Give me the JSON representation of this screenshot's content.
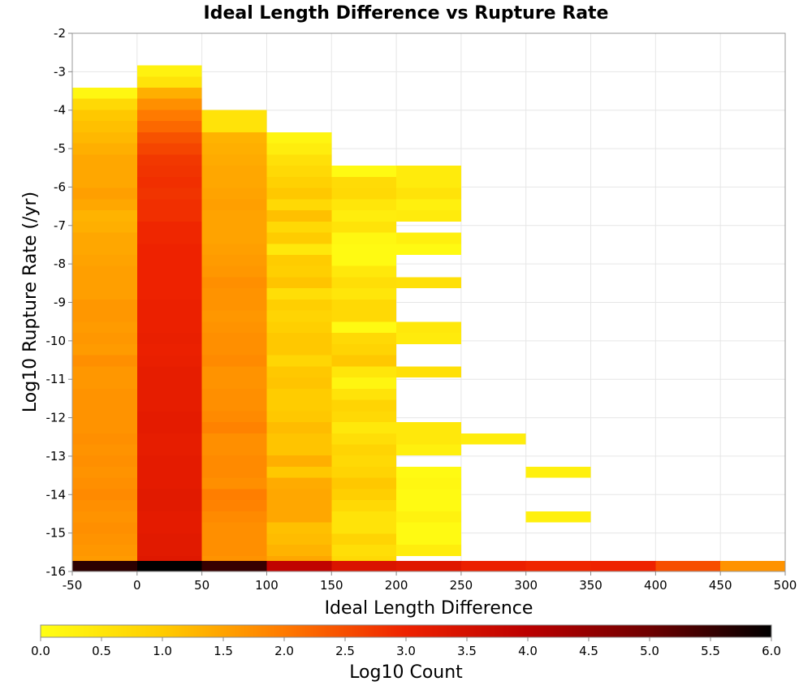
{
  "chart_data": {
    "type": "heatmap",
    "title": "Ideal Length Difference vs Rupture Rate",
    "xlabel": "Ideal Length Difference",
    "ylabel": "Log10 Rupture Rate (/yr)",
    "colorbar_label": "Log10 Count",
    "xlim": [
      -50,
      500
    ],
    "ylim": [
      -16,
      -2
    ],
    "x_ticks": [
      "-50",
      "0",
      "50",
      "100",
      "150",
      "200",
      "250",
      "300",
      "350",
      "400",
      "450",
      "500"
    ],
    "y_ticks": [
      "-2",
      "-3",
      "-4",
      "-5",
      "-6",
      "-7",
      "-8",
      "-9",
      "-10",
      "-11",
      "-12",
      "-13",
      "-14",
      "-15",
      "-16"
    ],
    "colorbar_ticks": [
      "0.0",
      "0.5",
      "1.0",
      "1.5",
      "2.0",
      "2.5",
      "3.0",
      "3.5",
      "4.0",
      "4.5",
      "5.0",
      "5.5",
      "6.0"
    ],
    "color_range": [
      0,
      6
    ],
    "colormap": "hot (yellow to black)",
    "grid": true,
    "x_bin_width": 50,
    "y_bin_height": 0.29,
    "columns": [
      {
        "x_start": -50,
        "cells": [
          [
            -3.56,
            0.15
          ],
          [
            -3.85,
            0.75
          ],
          [
            -4.14,
            1.05
          ],
          [
            -4.43,
            1.15
          ],
          [
            -4.72,
            1.25
          ],
          [
            -5.01,
            1.35
          ],
          [
            -5.3,
            1.45
          ],
          [
            -5.59,
            1.45
          ],
          [
            -5.88,
            1.45
          ],
          [
            -6.17,
            1.55
          ],
          [
            -6.46,
            1.45
          ],
          [
            -6.75,
            1.3
          ],
          [
            -7.04,
            1.35
          ],
          [
            -7.33,
            1.45
          ],
          [
            -7.62,
            1.45
          ],
          [
            -7.91,
            1.5
          ],
          [
            -8.2,
            1.55
          ],
          [
            -8.49,
            1.55
          ],
          [
            -8.78,
            1.55
          ],
          [
            -9.07,
            1.65
          ],
          [
            -9.36,
            1.65
          ],
          [
            -9.65,
            1.6
          ],
          [
            -9.94,
            1.65
          ],
          [
            -10.23,
            1.6
          ],
          [
            -10.52,
            1.75
          ],
          [
            -10.81,
            1.65
          ],
          [
            -11.1,
            1.65
          ],
          [
            -11.39,
            1.7
          ],
          [
            -11.68,
            1.7
          ],
          [
            -11.97,
            1.7
          ],
          [
            -12.26,
            1.7
          ],
          [
            -12.55,
            1.75
          ],
          [
            -12.84,
            1.7
          ],
          [
            -13.13,
            1.75
          ],
          [
            -13.42,
            1.7
          ],
          [
            -13.71,
            1.75
          ],
          [
            -14.0,
            1.8
          ],
          [
            -14.29,
            1.75
          ],
          [
            -14.58,
            1.7
          ],
          [
            -14.87,
            1.75
          ],
          [
            -15.16,
            1.7
          ],
          [
            -15.45,
            1.65
          ],
          [
            -15.74,
            1.6
          ],
          [
            -15.87,
            5.6
          ]
        ]
      },
      {
        "x_start": 0,
        "cells": [
          [
            -2.98,
            0.25
          ],
          [
            -3.27,
            0.55
          ],
          [
            -3.56,
            1.35
          ],
          [
            -3.85,
            1.75
          ],
          [
            -4.14,
            2.0
          ],
          [
            -4.43,
            2.2
          ],
          [
            -4.72,
            2.45
          ],
          [
            -5.01,
            2.6
          ],
          [
            -5.3,
            2.75
          ],
          [
            -5.59,
            2.8
          ],
          [
            -5.88,
            2.85
          ],
          [
            -6.17,
            2.8
          ],
          [
            -6.46,
            2.85
          ],
          [
            -6.75,
            2.85
          ],
          [
            -7.04,
            2.95
          ],
          [
            -7.33,
            2.95
          ],
          [
            -7.62,
            3.0
          ],
          [
            -7.91,
            3.0
          ],
          [
            -8.2,
            3.0
          ],
          [
            -8.49,
            3.0
          ],
          [
            -8.78,
            3.0
          ],
          [
            -9.07,
            3.05
          ],
          [
            -9.36,
            3.05
          ],
          [
            -9.65,
            3.05
          ],
          [
            -9.94,
            3.1
          ],
          [
            -10.23,
            3.05
          ],
          [
            -10.52,
            3.1
          ],
          [
            -10.81,
            3.15
          ],
          [
            -11.1,
            3.15
          ],
          [
            -11.39,
            3.15
          ],
          [
            -11.68,
            3.15
          ],
          [
            -11.97,
            3.2
          ],
          [
            -12.26,
            3.2
          ],
          [
            -12.55,
            3.15
          ],
          [
            -12.84,
            3.15
          ],
          [
            -13.13,
            3.2
          ],
          [
            -13.42,
            3.2
          ],
          [
            -13.71,
            3.2
          ],
          [
            -14.0,
            3.25
          ],
          [
            -14.29,
            3.25
          ],
          [
            -14.58,
            3.2
          ],
          [
            -14.87,
            3.2
          ],
          [
            -15.16,
            3.25
          ],
          [
            -15.45,
            3.25
          ],
          [
            -15.74,
            3.3
          ],
          [
            -15.87,
            6.0
          ]
        ]
      },
      {
        "x_start": 50,
        "cells": [
          [
            -4.14,
            0.55
          ],
          [
            -4.43,
            0.55
          ],
          [
            -4.72,
            1.3
          ],
          [
            -5.01,
            1.35
          ],
          [
            -5.3,
            1.4
          ],
          [
            -5.59,
            1.45
          ],
          [
            -5.88,
            1.45
          ],
          [
            -6.17,
            1.5
          ],
          [
            -6.46,
            1.55
          ],
          [
            -6.75,
            1.5
          ],
          [
            -7.04,
            1.5
          ],
          [
            -7.33,
            1.5
          ],
          [
            -7.62,
            1.55
          ],
          [
            -7.91,
            1.6
          ],
          [
            -8.2,
            1.65
          ],
          [
            -8.49,
            1.75
          ],
          [
            -8.78,
            1.7
          ],
          [
            -9.07,
            1.7
          ],
          [
            -9.36,
            1.65
          ],
          [
            -9.65,
            1.7
          ],
          [
            -9.94,
            1.75
          ],
          [
            -10.23,
            1.75
          ],
          [
            -10.52,
            1.8
          ],
          [
            -10.81,
            1.7
          ],
          [
            -11.1,
            1.7
          ],
          [
            -11.39,
            1.75
          ],
          [
            -11.68,
            1.75
          ],
          [
            -11.97,
            1.8
          ],
          [
            -12.26,
            1.9
          ],
          [
            -12.55,
            1.75
          ],
          [
            -12.84,
            1.75
          ],
          [
            -13.13,
            1.8
          ],
          [
            -13.42,
            1.8
          ],
          [
            -13.71,
            1.75
          ],
          [
            -14.0,
            1.95
          ],
          [
            -14.29,
            1.9
          ],
          [
            -14.58,
            1.8
          ],
          [
            -14.87,
            1.75
          ],
          [
            -15.16,
            1.75
          ],
          [
            -15.45,
            1.75
          ],
          [
            -15.74,
            1.7
          ],
          [
            -15.87,
            5.5
          ]
        ]
      },
      {
        "x_start": 100,
        "cells": [
          [
            -4.72,
            0.2
          ],
          [
            -5.01,
            0.35
          ],
          [
            -5.3,
            0.6
          ],
          [
            -5.59,
            0.75
          ],
          [
            -5.88,
            0.9
          ],
          [
            -6.17,
            1.05
          ],
          [
            -6.46,
            0.75
          ],
          [
            -6.75,
            1.15
          ],
          [
            -7.04,
            0.75
          ],
          [
            -7.33,
            1.0
          ],
          [
            -7.62,
            0.45
          ],
          [
            -7.91,
            1.0
          ],
          [
            -8.2,
            0.95
          ],
          [
            -8.49,
            1.1
          ],
          [
            -8.78,
            0.65
          ],
          [
            -9.07,
            0.95
          ],
          [
            -9.36,
            0.85
          ],
          [
            -9.65,
            0.95
          ],
          [
            -9.94,
            1.05
          ],
          [
            -10.23,
            1.05
          ],
          [
            -10.52,
            0.8
          ],
          [
            -10.81,
            1.05
          ],
          [
            -11.1,
            1.1
          ],
          [
            -11.39,
            1.0
          ],
          [
            -11.68,
            1.0
          ],
          [
            -11.97,
            1.05
          ],
          [
            -12.26,
            1.2
          ],
          [
            -12.55,
            1.1
          ],
          [
            -12.84,
            1.1
          ],
          [
            -13.13,
            1.35
          ],
          [
            -13.42,
            1.05
          ],
          [
            -13.71,
            1.4
          ],
          [
            -14.0,
            1.45
          ],
          [
            -14.29,
            1.45
          ],
          [
            -14.58,
            1.45
          ],
          [
            -14.87,
            1.15
          ],
          [
            -15.16,
            1.2
          ],
          [
            -15.45,
            1.3
          ],
          [
            -15.74,
            1.45
          ],
          [
            -15.87,
            3.9
          ]
        ]
      },
      {
        "x_start": 150,
        "cells": [
          [
            -5.59,
            0.1
          ],
          [
            -5.88,
            0.7
          ],
          [
            -6.17,
            0.75
          ],
          [
            -6.46,
            0.5
          ],
          [
            -6.75,
            0.35
          ],
          [
            -7.04,
            0.55
          ],
          [
            -7.33,
            0.15
          ],
          [
            -7.62,
            0.1
          ],
          [
            -7.91,
            0.1
          ],
          [
            -8.2,
            0.45
          ],
          [
            -8.49,
            0.65
          ],
          [
            -8.78,
            0.5
          ],
          [
            -9.07,
            0.75
          ],
          [
            -9.36,
            0.75
          ],
          [
            -9.65,
            0.1
          ],
          [
            -9.94,
            0.75
          ],
          [
            -10.23,
            0.85
          ],
          [
            -10.52,
            1.05
          ],
          [
            -10.81,
            0.5
          ],
          [
            -11.1,
            0.2
          ],
          [
            -11.39,
            0.55
          ],
          [
            -11.68,
            0.85
          ],
          [
            -11.97,
            0.75
          ],
          [
            -12.26,
            0.45
          ],
          [
            -12.55,
            0.65
          ],
          [
            -12.84,
            0.85
          ],
          [
            -13.13,
            0.75
          ],
          [
            -13.42,
            0.85
          ],
          [
            -13.71,
            1.05
          ],
          [
            -14.0,
            0.95
          ],
          [
            -14.29,
            0.75
          ],
          [
            -14.58,
            0.55
          ],
          [
            -14.87,
            0.55
          ],
          [
            -15.16,
            0.85
          ],
          [
            -15.45,
            0.65
          ],
          [
            -15.74,
            0.75
          ],
          [
            -15.87,
            3.4
          ]
        ]
      },
      {
        "x_start": 200,
        "cells": [
          [
            -5.59,
            0.4
          ],
          [
            -5.88,
            0.4
          ],
          [
            -6.17,
            0.55
          ],
          [
            -6.46,
            0.3
          ],
          [
            -6.75,
            0.4
          ],
          [
            -7.33,
            0.3
          ],
          [
            -7.62,
            0.1
          ],
          [
            -8.49,
            0.6
          ],
          [
            -9.65,
            0.45
          ],
          [
            -9.94,
            0.4
          ],
          [
            -10.81,
            0.6
          ],
          [
            -12.26,
            0.45
          ],
          [
            -12.55,
            0.45
          ],
          [
            -12.84,
            0.3
          ],
          [
            -13.42,
            0.1
          ],
          [
            -13.71,
            0.15
          ],
          [
            -14.0,
            0.1
          ],
          [
            -14.29,
            0.1
          ],
          [
            -14.58,
            0.25
          ],
          [
            -14.87,
            0.1
          ],
          [
            -15.16,
            0.1
          ],
          [
            -15.45,
            0.35
          ],
          [
            -15.87,
            3.3
          ]
        ]
      },
      {
        "x_start": 250,
        "cells": [
          [
            -12.55,
            0.35
          ],
          [
            -15.87,
            3.05
          ]
        ]
      },
      {
        "x_start": 300,
        "cells": [
          [
            -13.42,
            0.3
          ],
          [
            -14.58,
            0.3
          ],
          [
            -15.87,
            2.95
          ]
        ]
      },
      {
        "x_start": 350,
        "cells": [
          [
            -15.87,
            3.0
          ]
        ]
      },
      {
        "x_start": 400,
        "cells": [
          [
            -15.87,
            2.5
          ]
        ]
      },
      {
        "x_start": 450,
        "cells": [
          [
            -15.87,
            1.7
          ]
        ]
      }
    ]
  }
}
